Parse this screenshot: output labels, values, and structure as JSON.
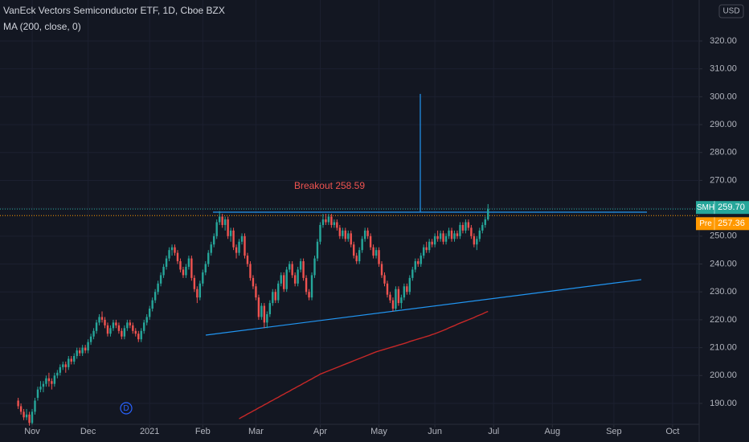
{
  "chart_data": {
    "type": "candlestick",
    "title": "VanEck Vectors Semiconductor ETF, 1D, Cboe BZX",
    "indicator_label": "MA (200, close, 0)",
    "currency": "USD",
    "up_color": "#26a69a",
    "down_color": "#ef5350",
    "grid": true,
    "xlim": [
      -6.5,
      243.5
    ],
    "xticks": [
      {
        "value": 5,
        "label": "Nov"
      },
      {
        "value": 25,
        "label": "Dec"
      },
      {
        "value": 47,
        "label": "2021"
      },
      {
        "value": 66,
        "label": "Feb"
      },
      {
        "value": 85,
        "label": "Mar"
      },
      {
        "value": 108,
        "label": "Apr"
      },
      {
        "value": 129,
        "label": "May"
      },
      {
        "value": 149,
        "label": "Jun"
      },
      {
        "value": 170,
        "label": "Jul"
      },
      {
        "value": 191,
        "label": "Aug"
      },
      {
        "value": 213,
        "label": "Sep"
      },
      {
        "value": 234,
        "label": "Oct"
      }
    ],
    "ylim": [
      182.5,
      334.7
    ],
    "yticks": [
      {
        "value": 190,
        "label": "190.00"
      },
      {
        "value": 200,
        "label": "200.00"
      },
      {
        "value": 210,
        "label": "210.00"
      },
      {
        "value": 220,
        "label": "220.00"
      },
      {
        "value": 230,
        "label": "230.00"
      },
      {
        "value": 240,
        "label": "240.00"
      },
      {
        "value": 250,
        "label": "250.00"
      },
      {
        "value": 260,
        "label": "260.00"
      },
      {
        "value": 270,
        "label": "270.00"
      },
      {
        "value": 280,
        "label": "280.00"
      },
      {
        "value": 290,
        "label": "290.00"
      },
      {
        "value": 300,
        "label": "300.00"
      },
      {
        "value": 310,
        "label": "310.00"
      },
      {
        "value": 320,
        "label": "320.00"
      }
    ],
    "candles": [
      [
        191,
        192,
        188,
        189
      ],
      [
        189,
        190,
        186,
        187
      ],
      [
        187,
        188,
        184,
        185
      ],
      [
        185,
        188,
        184,
        186
      ],
      [
        186,
        187,
        182,
        183
      ],
      [
        183,
        188,
        182,
        187
      ],
      [
        187,
        192,
        186,
        191
      ],
      [
        192,
        196,
        191,
        195
      ],
      [
        195,
        198,
        194,
        196
      ],
      [
        196,
        198,
        194,
        197
      ],
      [
        197,
        200,
        196,
        199
      ],
      [
        199,
        201,
        196,
        198
      ],
      [
        198,
        199,
        195,
        197
      ],
      [
        197,
        201,
        196,
        200
      ],
      [
        200,
        202,
        199,
        201
      ],
      [
        201,
        204,
        200,
        203
      ],
      [
        203,
        205,
        202,
        204
      ],
      [
        204,
        205,
        201,
        203
      ],
      [
        203,
        207,
        202,
        206
      ],
      [
        206,
        207,
        204,
        205
      ],
      [
        205,
        208,
        204,
        207
      ],
      [
        207,
        210,
        206,
        209
      ],
      [
        209,
        210,
        207,
        208
      ],
      [
        208,
        211,
        207,
        210
      ],
      [
        210,
        211,
        208,
        209
      ],
      [
        209,
        213,
        208,
        212
      ],
      [
        212,
        215,
        211,
        214
      ],
      [
        214,
        217,
        213,
        216
      ],
      [
        216,
        220,
        215,
        219
      ],
      [
        219,
        222,
        218,
        221
      ],
      [
        221,
        223,
        219,
        220
      ],
      [
        220,
        221,
        217,
        218
      ],
      [
        218,
        219,
        214,
        215
      ],
      [
        215,
        218,
        214,
        217
      ],
      [
        217,
        220,
        216,
        219
      ],
      [
        219,
        220,
        217,
        218
      ],
      [
        218,
        219,
        215,
        216
      ],
      [
        216,
        217,
        213,
        214
      ],
      [
        214,
        218,
        213,
        217
      ],
      [
        217,
        220,
        216,
        219
      ],
      [
        219,
        220,
        217,
        218
      ],
      [
        218,
        219,
        215,
        216
      ],
      [
        216,
        217,
        214,
        215
      ],
      [
        215,
        216,
        212,
        213
      ],
      [
        213,
        217,
        212,
        216
      ],
      [
        216,
        220,
        215,
        219
      ],
      [
        219,
        222,
        218,
        221
      ],
      [
        221,
        225,
        220,
        224
      ],
      [
        224,
        228,
        223,
        227
      ],
      [
        227,
        231,
        226,
        230
      ],
      [
        230,
        234,
        229,
        233
      ],
      [
        233,
        237,
        232,
        236
      ],
      [
        236,
        240,
        235,
        239
      ],
      [
        239,
        243,
        238,
        242
      ],
      [
        242,
        246,
        241,
        245
      ],
      [
        245,
        247,
        243,
        246
      ],
      [
        246,
        247,
        243,
        244
      ],
      [
        244,
        245,
        240,
        241
      ],
      [
        241,
        242,
        237,
        238
      ],
      [
        238,
        239,
        235,
        236
      ],
      [
        236,
        240,
        235,
        239
      ],
      [
        239,
        243,
        238,
        242
      ],
      [
        242,
        243,
        234,
        235
      ],
      [
        235,
        236,
        230,
        231
      ],
      [
        231,
        232,
        226,
        228
      ],
      [
        228,
        234,
        227,
        233
      ],
      [
        233,
        238,
        232,
        237
      ],
      [
        237,
        241,
        236,
        240
      ],
      [
        240,
        245,
        239,
        244
      ],
      [
        244,
        248,
        243,
        247
      ],
      [
        247,
        251,
        246,
        250
      ],
      [
        250,
        256,
        249,
        255
      ],
      [
        255,
        259,
        254,
        257
      ],
      [
        257,
        258,
        253,
        254
      ],
      [
        254,
        257,
        252,
        256
      ],
      [
        256,
        257,
        249,
        250
      ],
      [
        250,
        253,
        248,
        252
      ],
      [
        252,
        253,
        245,
        246
      ],
      [
        246,
        247,
        242,
        244
      ],
      [
        244,
        249,
        243,
        248
      ],
      [
        248,
        251,
        247,
        250
      ],
      [
        250,
        251,
        242,
        243
      ],
      [
        243,
        244,
        239,
        240
      ],
      [
        240,
        241,
        234,
        235
      ],
      [
        235,
        236,
        231,
        232
      ],
      [
        232,
        233,
        227,
        228
      ],
      [
        228,
        229,
        220,
        221
      ],
      [
        221,
        226,
        220,
        225
      ],
      [
        225,
        226,
        217,
        219
      ],
      [
        219,
        223,
        217,
        222
      ],
      [
        222,
        227,
        221,
        226
      ],
      [
        226,
        231,
        225,
        230
      ],
      [
        230,
        231,
        226,
        227
      ],
      [
        227,
        234,
        226,
        233
      ],
      [
        233,
        237,
        232,
        236
      ],
      [
        236,
        237,
        230,
        231
      ],
      [
        231,
        239,
        230,
        238
      ],
      [
        238,
        241,
        237,
        240
      ],
      [
        240,
        241,
        235,
        236
      ],
      [
        236,
        237,
        232,
        233
      ],
      [
        233,
        239,
        232,
        238
      ],
      [
        238,
        242,
        237,
        241
      ],
      [
        241,
        242,
        234,
        235
      ],
      [
        235,
        236,
        229,
        230
      ],
      [
        230,
        231,
        227,
        228
      ],
      [
        228,
        237,
        227,
        236
      ],
      [
        236,
        243,
        235,
        242
      ],
      [
        242,
        249,
        241,
        248
      ],
      [
        248,
        255,
        247,
        254
      ],
      [
        254,
        258,
        253,
        256
      ],
      [
        256,
        258,
        254,
        255
      ],
      [
        255,
        258,
        254,
        257
      ],
      [
        257,
        258,
        253,
        254
      ],
      [
        254,
        256,
        253,
        255
      ],
      [
        255,
        256,
        252,
        253
      ],
      [
        253,
        254,
        249,
        250
      ],
      [
        250,
        253,
        249,
        252
      ],
      [
        252,
        253,
        248,
        249
      ],
      [
        249,
        252,
        248,
        251
      ],
      [
        251,
        252,
        246,
        247
      ],
      [
        247,
        248,
        242,
        243
      ],
      [
        243,
        244,
        240,
        241
      ],
      [
        241,
        246,
        240,
        245
      ],
      [
        245,
        250,
        244,
        249
      ],
      [
        249,
        253,
        248,
        252
      ],
      [
        252,
        253,
        249,
        250
      ],
      [
        250,
        251,
        245,
        246
      ],
      [
        246,
        247,
        242,
        243
      ],
      [
        243,
        246,
        242,
        245
      ],
      [
        245,
        246,
        239,
        240
      ],
      [
        240,
        241,
        235,
        236
      ],
      [
        236,
        237,
        232,
        233
      ],
      [
        233,
        234,
        228,
        229
      ],
      [
        229,
        230,
        226,
        227
      ],
      [
        227,
        228,
        223,
        224
      ],
      [
        224,
        232,
        223,
        231
      ],
      [
        231,
        232,
        225,
        226
      ],
      [
        226,
        229,
        224,
        228
      ],
      [
        228,
        233,
        227,
        232
      ],
      [
        232,
        233,
        229,
        230
      ],
      [
        230,
        236,
        229,
        235
      ],
      [
        235,
        239,
        234,
        238
      ],
      [
        238,
        242,
        237,
        241
      ],
      [
        241,
        242,
        239,
        240
      ],
      [
        240,
        244,
        239,
        243
      ],
      [
        243,
        247,
        242,
        246
      ],
      [
        246,
        248,
        244,
        245
      ],
      [
        245,
        249,
        244,
        248
      ],
      [
        248,
        249,
        246,
        247
      ],
      [
        247,
        251,
        246,
        250
      ],
      [
        250,
        252,
        248,
        249
      ],
      [
        249,
        252,
        248,
        251
      ],
      [
        251,
        252,
        247,
        248
      ],
      [
        248,
        251,
        247,
        250
      ],
      [
        250,
        253,
        249,
        252
      ],
      [
        252,
        253,
        248,
        249
      ],
      [
        249,
        252,
        248,
        251
      ],
      [
        251,
        252,
        249,
        250
      ],
      [
        250,
        255,
        249,
        254
      ],
      [
        254,
        255,
        251,
        252
      ],
      [
        252,
        256,
        251,
        255
      ],
      [
        255,
        256,
        252,
        253
      ],
      [
        253,
        254,
        249,
        250
      ],
      [
        250,
        251,
        246,
        247
      ],
      [
        247,
        250,
        245,
        249
      ],
      [
        249,
        253,
        248,
        252
      ],
      [
        252,
        255,
        251,
        254
      ],
      [
        254,
        257,
        253,
        256
      ],
      [
        256,
        261.5,
        255.5,
        259.7
      ]
    ],
    "moving_average": {
      "color": "#c62828",
      "values": [
        null,
        null,
        null,
        null,
        null,
        null,
        null,
        null,
        null,
        null,
        null,
        null,
        null,
        null,
        null,
        null,
        null,
        null,
        null,
        null,
        null,
        null,
        null,
        null,
        null,
        null,
        null,
        null,
        null,
        null,
        null,
        null,
        null,
        null,
        null,
        null,
        null,
        null,
        null,
        null,
        null,
        null,
        null,
        null,
        null,
        null,
        null,
        null,
        null,
        null,
        null,
        null,
        null,
        null,
        null,
        null,
        null,
        null,
        null,
        null,
        null,
        null,
        null,
        null,
        null,
        null,
        null,
        null,
        null,
        null,
        null,
        null,
        null,
        null,
        null,
        null,
        null,
        null,
        null,
        184.5,
        185.1,
        185.6,
        186.2,
        186.7,
        187.3,
        187.8,
        188.4,
        188.9,
        189.5,
        190.0,
        190.6,
        191.1,
        191.7,
        192.2,
        192.8,
        193.3,
        193.9,
        194.4,
        195.0,
        195.5,
        196.1,
        196.6,
        197.2,
        197.7,
        198.3,
        198.8,
        199.4,
        199.9,
        200.5,
        200.9,
        201.3,
        201.7,
        202.1,
        202.5,
        202.9,
        203.3,
        203.7,
        204.1,
        204.5,
        204.9,
        205.3,
        205.7,
        206.1,
        206.5,
        206.9,
        207.3,
        207.7,
        208.1,
        208.5,
        208.8,
        209.1,
        209.4,
        209.7,
        210.0,
        210.3,
        210.6,
        210.9,
        211.2,
        211.5,
        211.8,
        212.2,
        212.5,
        212.8,
        213.1,
        213.4,
        213.7,
        214.0,
        214.3,
        214.7,
        215.0,
        215.4,
        215.8,
        216.2,
        216.6,
        217.1,
        217.5,
        217.9,
        218.4,
        218.8,
        219.2,
        219.6,
        220.0,
        220.4,
        220.8,
        221.3,
        221.7,
        222.1,
        222.6,
        223.0
      ]
    },
    "trend_lines": [
      {
        "color": "#2196f3",
        "y": [
          258.6,
          258.6
        ]
      },
      {
        "color": "#2196f3",
        "y": [
          214.5,
          234.4
        ]
      },
      {
        "color": "#2196f3",
        "y": [
          258.6,
          301.0
        ]
      }
    ],
    "annotation": {
      "text": "Breakout 258.59",
      "color": "#ef5350"
    },
    "last_price": {
      "symbol": "SMH",
      "value": 259.7,
      "label": "259.70",
      "color": "#26a69a"
    },
    "premarket_price": {
      "symbol": "Pre",
      "value": 257.36,
      "color": "#ff9800"
    },
    "event_marker": {
      "label": "D",
      "color": "#2962ff"
    }
  }
}
